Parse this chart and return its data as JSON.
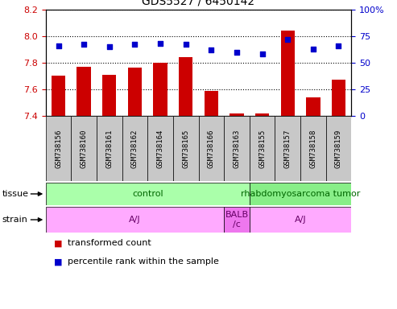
{
  "title": "GDS5527 / 6450142",
  "samples": [
    "GSM738156",
    "GSM738160",
    "GSM738161",
    "GSM738162",
    "GSM738164",
    "GSM738165",
    "GSM738166",
    "GSM738163",
    "GSM738155",
    "GSM738157",
    "GSM738158",
    "GSM738159"
  ],
  "transformed_count": [
    7.7,
    7.77,
    7.71,
    7.76,
    7.8,
    7.84,
    7.59,
    7.42,
    7.42,
    8.04,
    7.54,
    7.67
  ],
  "percentile_rank": [
    66,
    67,
    65,
    67,
    68,
    67,
    62,
    60,
    58,
    72,
    63,
    66
  ],
  "ylim_left": [
    7.4,
    8.2
  ],
  "ylim_right": [
    0,
    100
  ],
  "yticks_left": [
    7.4,
    7.6,
    7.8,
    8.0,
    8.2
  ],
  "yticks_right": [
    0,
    25,
    50,
    75,
    100
  ],
  "bar_color": "#cc0000",
  "dot_color": "#0000cc",
  "bar_base": 7.4,
  "tissue_groups": [
    {
      "label": "control",
      "start": 0,
      "end": 8,
      "color": "#aaffaa"
    },
    {
      "label": "rhabdomyosarcoma tumor",
      "start": 8,
      "end": 12,
      "color": "#88ee88"
    }
  ],
  "strain_groups": [
    {
      "label": "A/J",
      "start": 0,
      "end": 7,
      "color": "#ffaaff"
    },
    {
      "label": "BALB\n/c",
      "start": 7,
      "end": 8,
      "color": "#ee77ee"
    },
    {
      "label": "A/J",
      "start": 8,
      "end": 12,
      "color": "#ffaaff"
    }
  ],
  "legend_items": [
    {
      "color": "#cc0000",
      "label": "transformed count"
    },
    {
      "color": "#0000cc",
      "label": "percentile rank within the sample"
    }
  ],
  "tick_label_color_left": "#cc0000",
  "tick_label_color_right": "#0000cc",
  "label_left_color": "#000000",
  "tissue_label_color": "#006600",
  "strain_label_color": "#660066"
}
